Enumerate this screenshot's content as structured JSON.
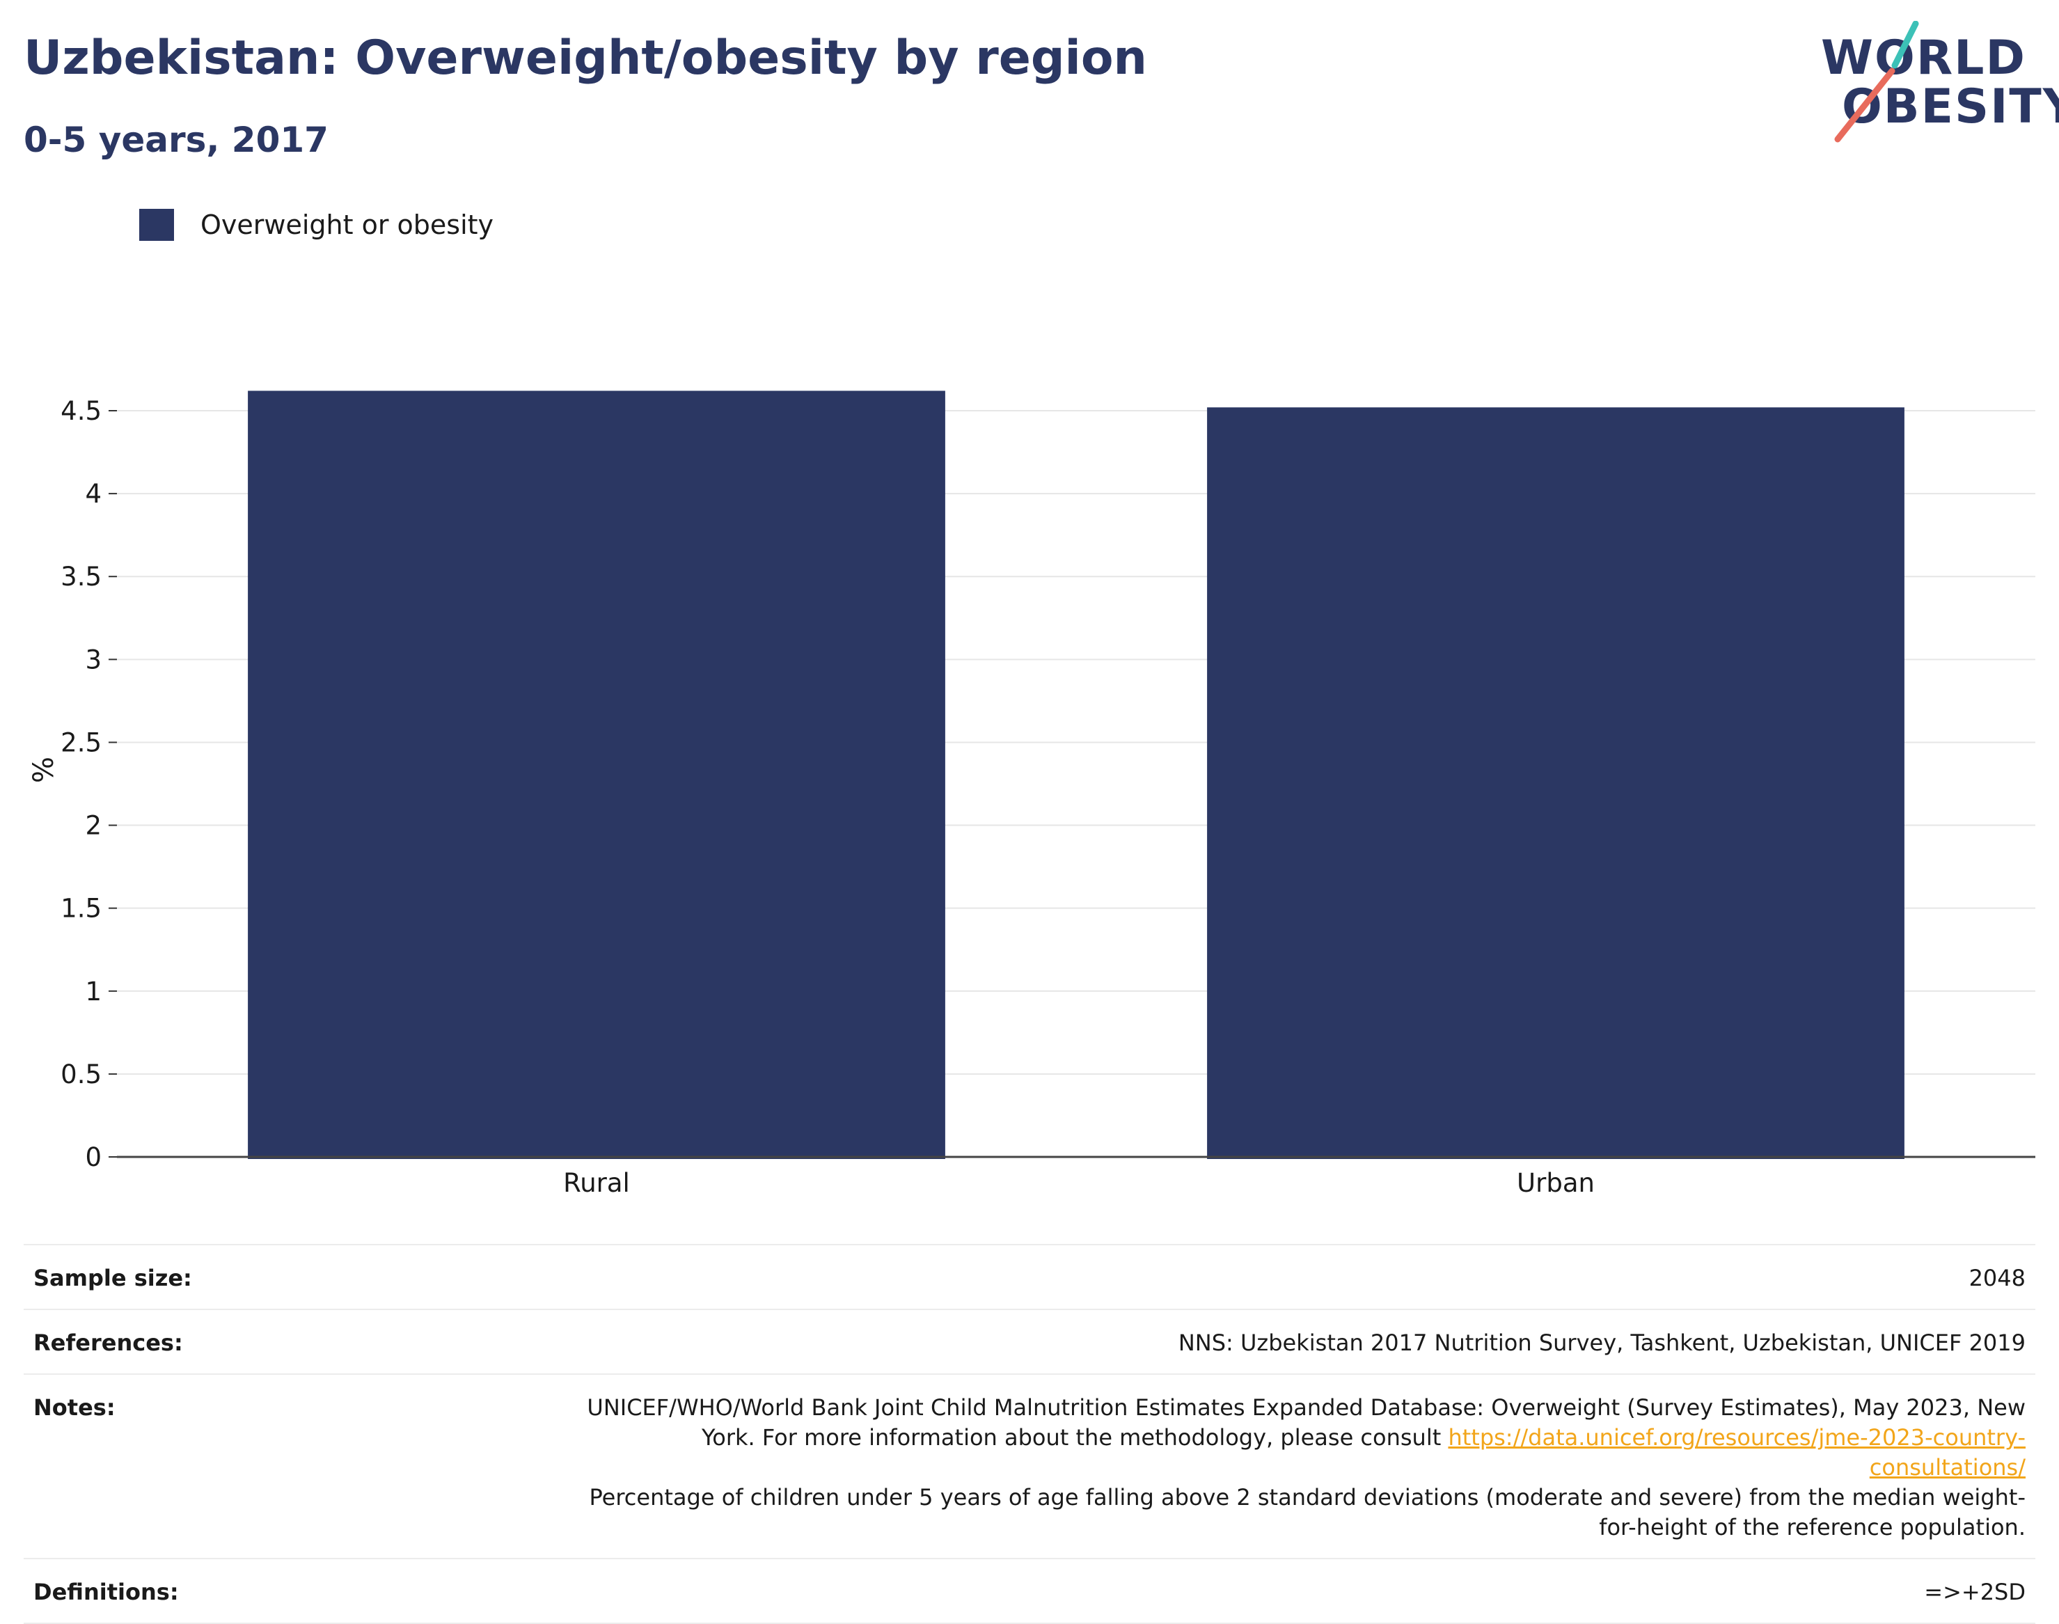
{
  "header": {
    "title": "Uzbekistan: Overweight/obesity by region",
    "subtitle": "0-5 years, 2017"
  },
  "logo": {
    "line1": "WORLD",
    "line2": "OBESITY",
    "colors": {
      "text": "#2b3763",
      "teal_slash": "#3cc1b7",
      "red_slash": "#e86b5c"
    }
  },
  "legend": {
    "items": [
      {
        "label": "Overweight or obesity",
        "color": "#2b3763"
      }
    ]
  },
  "chart_data": {
    "type": "bar",
    "categories": [
      "Rural",
      "Urban"
    ],
    "series": [
      {
        "name": "Overweight or obesity",
        "values": [
          4.62,
          4.52
        ],
        "color": "#2b3763"
      }
    ],
    "ylabel": "%",
    "xlabel": "",
    "ylim": [
      0,
      4.5
    ],
    "yticks": [
      "0",
      "0.5",
      "1",
      "1.5",
      "2",
      "2.5",
      "3",
      "3.5",
      "4",
      "4.5"
    ],
    "grid": true,
    "legend_position": "top-left"
  },
  "info": {
    "sample_size": {
      "label": "Sample size:",
      "value": "2048"
    },
    "references": {
      "label": "References:",
      "value": "NNS: Uzbekistan 2017 Nutrition Survey, Tashkent, Uzbekistan, UNICEF 2019"
    },
    "notes": {
      "label": "Notes:",
      "text_before": "UNICEF/WHO/World Bank Joint Child Malnutrition Estimates Expanded Database: Overweight (Survey Estimates), May 2023, New York. For more information about the methodology, please consult ",
      "link": "https://data.unicef.org/resources/jme-2023-country-consultations/",
      "text_after": "Percentage of children under 5 years of age falling above 2 standard deviations (moderate and severe) from the median weight-for-height of the reference population."
    },
    "definitions": {
      "label": "Definitions:",
      "value": "=>+2SD"
    }
  }
}
